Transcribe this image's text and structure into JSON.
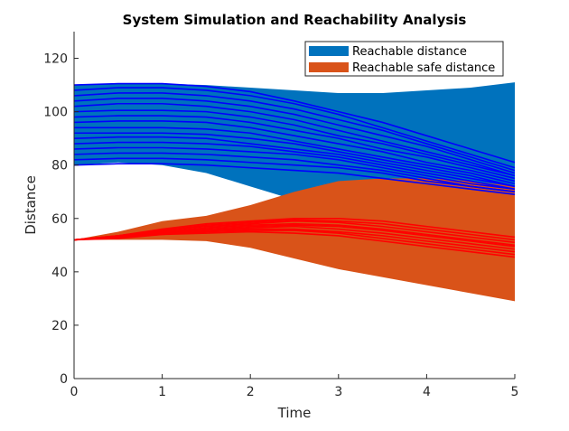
{
  "chart_data": {
    "type": "area",
    "title": "System Simulation and Reachability Analysis",
    "xlabel": "Time",
    "ylabel": "Distance",
    "xlim": [
      0,
      5
    ],
    "ylim": [
      0,
      130
    ],
    "xticks": [
      0,
      1,
      2,
      3,
      4,
      5
    ],
    "yticks": [
      0,
      20,
      40,
      60,
      80,
      100,
      120
    ],
    "grid": false,
    "legend_position": "top-right",
    "series": [
      {
        "name": "Reachable distance",
        "kind": "band",
        "color": "#0072BD",
        "x": [
          0,
          0.5,
          1,
          1.5,
          2,
          2.5,
          3,
          3.5,
          4,
          4.5,
          5
        ],
        "upper": [
          110,
          110.5,
          110.5,
          110,
          109,
          108,
          107,
          107,
          108,
          109,
          111
        ],
        "lower": [
          80,
          81,
          80,
          77,
          72,
          67,
          64,
          63,
          62,
          61,
          60
        ]
      },
      {
        "name": "Reachable safe distance",
        "kind": "band",
        "color": "#D95319",
        "x": [
          0,
          0.5,
          1,
          1.5,
          2,
          2.5,
          3,
          3.5,
          4,
          4.5,
          5
        ],
        "upper": [
          52,
          55,
          59,
          61,
          65,
          70,
          74,
          75,
          75,
          74,
          72
        ],
        "lower": [
          52,
          52,
          52,
          51.5,
          49,
          45,
          41,
          38,
          35,
          32,
          29
        ]
      }
    ],
    "trajectories": {
      "x": [
        0,
        0.5,
        1,
        1.5,
        2,
        2.5,
        3,
        3.5,
        4,
        4.5,
        5
      ],
      "distance_color": "#0000FF",
      "distance": [
        [
          110,
          110.5,
          110.5,
          109.5,
          107.5,
          104,
          100,
          96,
          91,
          86,
          81
        ],
        [
          108,
          109,
          109,
          108,
          106,
          103,
          99,
          94,
          89,
          84,
          79
        ],
        [
          106,
          107,
          107,
          106,
          104,
          101,
          97,
          93,
          88,
          83,
          78
        ],
        [
          104,
          105,
          105,
          104,
          102,
          99,
          95,
          91,
          87,
          82,
          77
        ],
        [
          102,
          103,
          103,
          102,
          100,
          97,
          93,
          89,
          85,
          81,
          76
        ],
        [
          100,
          100.5,
          100.5,
          100,
          98,
          95,
          91,
          88,
          84,
          80,
          76
        ],
        [
          98,
          98.5,
          98.5,
          98,
          96,
          93,
          90,
          86,
          83,
          79,
          75
        ],
        [
          96,
          96.5,
          96.5,
          96,
          94,
          91,
          88,
          85,
          81,
          78,
          74
        ],
        [
          94,
          94,
          94,
          93.5,
          92,
          89,
          86,
          83,
          80,
          77,
          73
        ],
        [
          92,
          92,
          92,
          91.5,
          90,
          88,
          85,
          82,
          79,
          76,
          72
        ],
        [
          90,
          90.5,
          90.5,
          90,
          88,
          86,
          84,
          81,
          78,
          75,
          72
        ],
        [
          88,
          88.5,
          88.5,
          88,
          87,
          85,
          83,
          80,
          77,
          74,
          71
        ],
        [
          86,
          86.5,
          86.5,
          86,
          85,
          84,
          82,
          79,
          76,
          73,
          71
        ],
        [
          84,
          84.5,
          84.5,
          84,
          83,
          82,
          80,
          78,
          75,
          72,
          70
        ],
        [
          82,
          82.5,
          82.5,
          82,
          81,
          80,
          79,
          77,
          74,
          72,
          70
        ],
        [
          80,
          80.5,
          80.5,
          80,
          79,
          78,
          77,
          75,
          73,
          71,
          69
        ]
      ],
      "safe_color": "#FF0000",
      "safe": [
        [
          52,
          53.5,
          56,
          58,
          59,
          60,
          60,
          59,
          57,
          55,
          53
        ],
        [
          52,
          53.5,
          55.5,
          57.5,
          58.5,
          59.5,
          59,
          58,
          56,
          54,
          52
        ],
        [
          52,
          53.5,
          55.5,
          57,
          58,
          59,
          58.5,
          57,
          55,
          53,
          51
        ],
        [
          52,
          53,
          55,
          56.5,
          57.5,
          58,
          57.5,
          56,
          54,
          52,
          50
        ],
        [
          52,
          53,
          55,
          56,
          57,
          57.5,
          57,
          55.5,
          53.5,
          51.5,
          49.5
        ],
        [
          52,
          53,
          54.5,
          55.5,
          56.5,
          57,
          56,
          54.5,
          52.5,
          50.5,
          48.5
        ],
        [
          52,
          53,
          54.5,
          55.5,
          56,
          56,
          55,
          53.5,
          51.5,
          49.5,
          47.5
        ],
        [
          52,
          53,
          54,
          55,
          55.5,
          55.5,
          54.5,
          52.5,
          50.5,
          48.5,
          46.5
        ],
        [
          52,
          52.5,
          54,
          54.5,
          55,
          54.5,
          53.5,
          51.5,
          49.5,
          47.5,
          45.5
        ]
      ]
    }
  }
}
